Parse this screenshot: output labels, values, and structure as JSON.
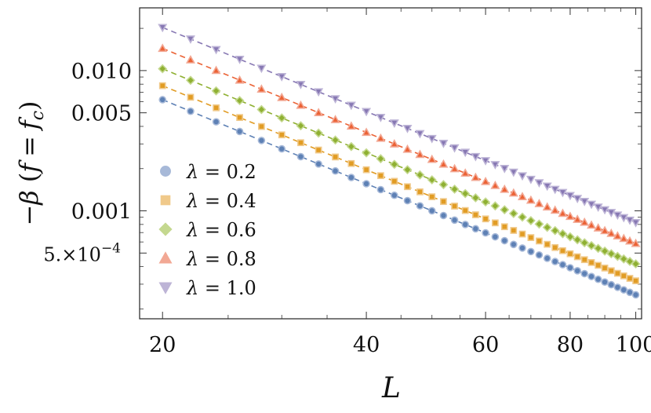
{
  "chart_data": {
    "type": "scatter",
    "scale": "log-log",
    "xlabel": "L",
    "ylabel": "−β (f = f_c)",
    "ylabel_parts": {
      "minus_beta": "−β",
      "open": "(",
      "f": "f",
      "eq": "=",
      "fc": "f",
      "sub": "c",
      "close": ")"
    },
    "xlim": [
      18.5,
      102
    ],
    "ylim": [
      0.00017,
      0.028
    ],
    "x_ticks": [
      20,
      40,
      60,
      80,
      100
    ],
    "x_tick_labels": [
      "20",
      "40",
      "60",
      "80",
      "100"
    ],
    "y_ticks": [
      0.01,
      0.005,
      0.001,
      0.0005
    ],
    "y_tick_labels": [
      "0.010",
      "0.005",
      "0.001",
      "5.×10"
    ],
    "y_tick_exponent": "−4",
    "grid": false,
    "legend_position": "left-bottom",
    "fit_lines": "dashed",
    "L_values": [
      20,
      22,
      24,
      26,
      28,
      30,
      32,
      34,
      36,
      38,
      40,
      42,
      44,
      46,
      48,
      50,
      52,
      54,
      56,
      58,
      60,
      62,
      64,
      66,
      68,
      70,
      72,
      74,
      76,
      78,
      80,
      82,
      84,
      86,
      88,
      90,
      92,
      94,
      96,
      98,
      100
    ],
    "series": [
      {
        "name": "λ = 0.2",
        "lambda": "0.2",
        "marker": "circle",
        "color": "#5E81B5",
        "fill": "#A7B9D8",
        "amplitude": 0.0062,
        "exponent": -1.99
      },
      {
        "name": "λ = 0.4",
        "lambda": "0.4",
        "marker": "square",
        "color": "#E19C24",
        "fill": "#F0C98A",
        "amplitude": 0.0078,
        "exponent": -1.99
      },
      {
        "name": "λ = 0.6",
        "lambda": "0.6",
        "marker": "diamond",
        "color": "#8FB032",
        "fill": "#C4D88F",
        "amplitude": 0.0103,
        "exponent": -1.99
      },
      {
        "name": "λ = 0.8",
        "lambda": "0.8",
        "marker": "triangle-up",
        "color": "#EB6235",
        "fill": "#F2A894",
        "amplitude": 0.0144,
        "exponent": -1.99
      },
      {
        "name": "λ = 1.0",
        "lambda": "1.0",
        "marker": "triangle-down",
        "color": "#8778B3",
        "fill": "#BDB4D6",
        "amplitude": 0.0203,
        "exponent": -1.99
      }
    ]
  }
}
